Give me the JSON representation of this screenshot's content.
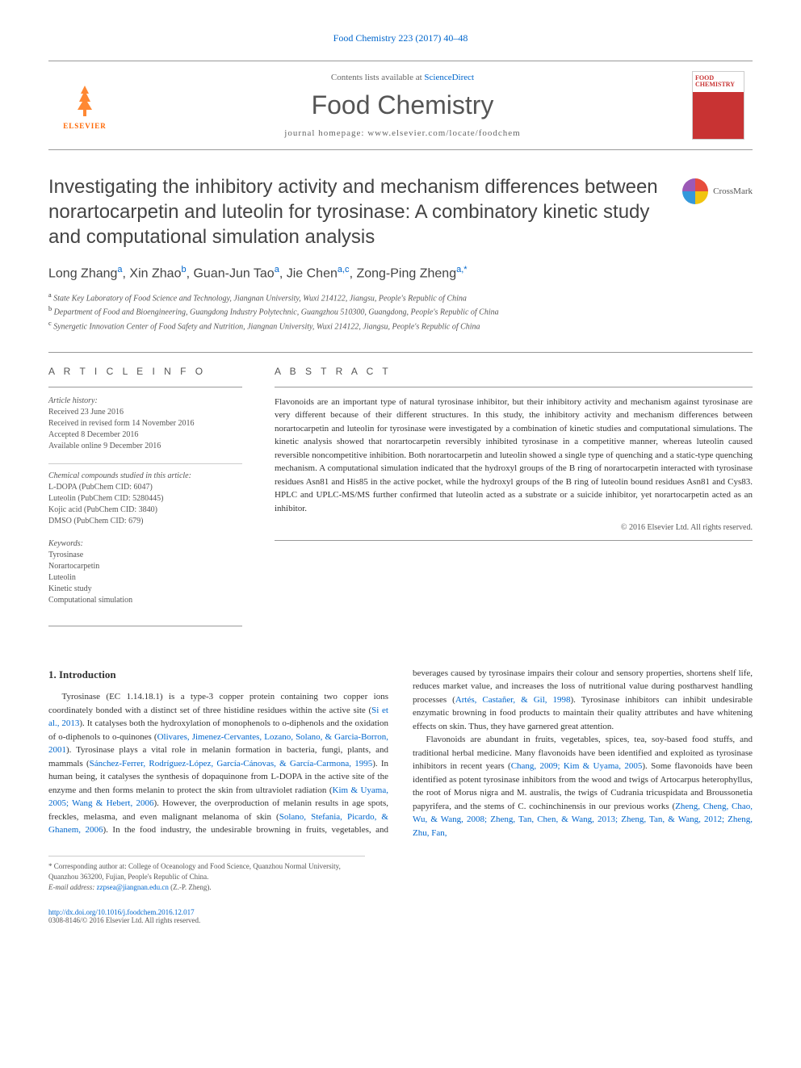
{
  "journal_ref": "Food Chemistry 223 (2017) 40–48",
  "masthead": {
    "contents_prefix": "Contents lists available at ",
    "contents_link": "ScienceDirect",
    "journal_name": "Food Chemistry",
    "homepage_prefix": "journal homepage: ",
    "homepage_url": "www.elsevier.com/locate/foodchem",
    "publisher": "ELSEVIER",
    "cover_label": "FOOD CHEMISTRY"
  },
  "crossmark": "CrossMark",
  "title": "Investigating the inhibitory activity and mechanism differences between norartocarpetin and luteolin for tyrosinase: A combinatory kinetic study and computational simulation analysis",
  "authors": [
    {
      "name": "Long Zhang",
      "aff": "a"
    },
    {
      "name": "Xin Zhao",
      "aff": "b"
    },
    {
      "name": "Guan-Jun Tao",
      "aff": "a"
    },
    {
      "name": "Jie Chen",
      "aff": "a,c"
    },
    {
      "name": "Zong-Ping Zheng",
      "aff": "a,*"
    }
  ],
  "affiliations": [
    {
      "sup": "a",
      "text": "State Key Laboratory of Food Science and Technology, Jiangnan University, Wuxi 214122, Jiangsu, People's Republic of China"
    },
    {
      "sup": "b",
      "text": "Department of Food and Bioengineering, Guangdong Industry Polytechnic, Guangzhou 510300, Guangdong, People's Republic of China"
    },
    {
      "sup": "c",
      "text": "Synergetic Innovation Center of Food Safety and Nutrition, Jiangnan University, Wuxi 214122, Jiangsu, People's Republic of China"
    }
  ],
  "article_info": {
    "header": "A R T I C L E   I N F O",
    "history_label": "Article history:",
    "history": [
      "Received 23 June 2016",
      "Received in revised form 14 November 2016",
      "Accepted 8 December 2016",
      "Available online 9 December 2016"
    ],
    "compounds_label": "Chemical compounds studied in this article:",
    "compounds": [
      "L-DOPA (PubChem CID: 6047)",
      "Luteolin (PubChem CID: 5280445)",
      "Kojic acid (PubChem CID: 3840)",
      "DMSO (PubChem CID: 679)"
    ],
    "keywords_label": "Keywords:",
    "keywords": [
      "Tyrosinase",
      "Norartocarpetin",
      "Luteolin",
      "Kinetic study",
      "Computational simulation"
    ]
  },
  "abstract": {
    "header": "A B S T R A C T",
    "text": "Flavonoids are an important type of natural tyrosinase inhibitor, but their inhibitory activity and mechanism against tyrosinase are very different because of their different structures. In this study, the inhibitory activity and mechanism differences between norartocarpetin and luteolin for tyrosinase were investigated by a combination of kinetic studies and computational simulations. The kinetic analysis showed that norartocarpetin reversibly inhibited tyrosinase in a competitive manner, whereas luteolin caused reversible noncompetitive inhibition. Both norartocarpetin and luteolin showed a single type of quenching and a static-type quenching mechanism. A computational simulation indicated that the hydroxyl groups of the B ring of norartocarpetin interacted with tyrosinase residues Asn81 and His85 in the active pocket, while the hydroxyl groups of the B ring of luteolin bound residues Asn81 and Cys83. HPLC and UPLC-MS/MS further confirmed that luteolin acted as a substrate or a suicide inhibitor, yet norartocarpetin acted as an inhibitor.",
    "copyright": "© 2016 Elsevier Ltd. All rights reserved."
  },
  "body": {
    "section1_title": "1. Introduction",
    "para1_a": "Tyrosinase (EC 1.14.18.1) is a type-3 copper protein containing two copper ions coordinately bonded with a distinct set of three histidine residues within the active site (",
    "ref1": "Si et al., 2013",
    "para1_b": "). It catalyses both the hydroxylation of monophenols to o-diphenols and the oxidation of o-diphenols to o-quinones (",
    "ref2": "Olivares, Jimenez-Cervantes, Lozano, Solano, & Garcia-Borron, 2001",
    "para1_c": "). Tyrosinase plays a vital role in melanin formation in bacteria, fungi, plants, and mammals (",
    "ref3": "Sánchez-Ferrer, Rodríguez-López, García-Cánovas, & García-Carmona, 1995",
    "para1_d": "). In human being, it catalyses the synthesis of dopaquinone from ",
    "ldopa": "L",
    "para1_e": "-DOPA in the active site of the enzyme and then forms melanin to protect the skin from ultraviolet radiation (",
    "ref4": "Kim & Uyama, 2005; Wang & Hebert, 2006",
    "para1_f": "). However, the overproduction of melanin results in age spots, freckles, melasma, and even malignant melanoma of skin (",
    "ref5": "Solano, Stefania, Picardo, & Ghanem, 2006",
    "para1_g": "). In the food industry, the undesirable browning in fruits, vegetables, and beverages caused by tyrosinase impairs their colour and sensory properties, shortens shelf life, reduces market value, and increases the loss of nutritional value during postharvest handling processes (",
    "ref6": "Artés, Castañer, & Gil, 1998",
    "para1_h": "). Tyrosinase inhibitors can inhibit undesirable enzymatic browning in food products to maintain their quality attributes and have whitening effects on skin. Thus, they have garnered great attention.",
    "para2_a": "Flavonoids are abundant in fruits, vegetables, spices, tea, soy-based food stuffs, and traditional herbal medicine. Many flavonoids have been identified and exploited as tyrosinase inhibitors in recent years (",
    "ref7": "Chang, 2009; Kim & Uyama, 2005",
    "para2_b": "). Some flavonoids have been identified as potent tyrosinase inhibitors from the wood and twigs of Artocarpus heterophyllus, the root of Morus nigra and M. australis, the twigs of Cudrania tricuspidata and Broussonetia papyrifera, and the stems of C. cochinchinensis in our previous works (",
    "ref8": "Zheng, Cheng, Chao, Wu, & Wang, 2008; Zheng, Tan, Chen, & Wang, 2013; Zheng, Tan, & Wang, 2012; Zheng, Zhu, Fan,",
    "para2_c": ""
  },
  "footer": {
    "corr_label": "* Corresponding author at: ",
    "corr_text": "College of Oceanology and Food Science, Quanzhou Normal University, Quanzhou 363200, Fujian, People's Republic of China.",
    "email_label": "E-mail address: ",
    "email": "zzpsea@jiangnan.edu.cn",
    "email_suffix": " (Z.-P. Zheng).",
    "doi_url": "http://dx.doi.org/10.1016/j.foodchem.2016.12.017",
    "issn_line": "0308-8146/© 2016 Elsevier Ltd. All rights reserved."
  }
}
